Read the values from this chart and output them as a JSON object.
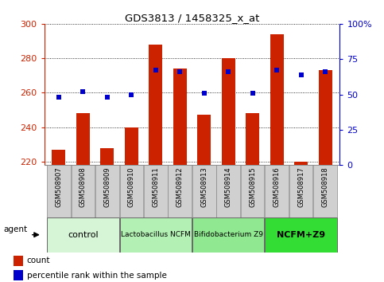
{
  "title": "GDS3813 / 1458325_x_at",
  "samples": [
    "GSM508907",
    "GSM508908",
    "GSM508909",
    "GSM508910",
    "GSM508911",
    "GSM508912",
    "GSM508913",
    "GSM508914",
    "GSM508915",
    "GSM508916",
    "GSM508917",
    "GSM508918"
  ],
  "counts": [
    227,
    248,
    228,
    240,
    288,
    274,
    247,
    280,
    248,
    294,
    220,
    273
  ],
  "percentiles": [
    48,
    52,
    48,
    50,
    67,
    66,
    51,
    66,
    51,
    67,
    64,
    66
  ],
  "ymin": 218,
  "ymax": 300,
  "yticks": [
    220,
    240,
    260,
    280,
    300
  ],
  "y2min": 0,
  "y2max": 100,
  "y2ticks": [
    0,
    25,
    50,
    75,
    100
  ],
  "bar_color": "#cc2200",
  "dot_color": "#0000cc",
  "bar_width": 0.55,
  "group_data": [
    {
      "label": "control",
      "start": 0,
      "end": 2,
      "color": "#d6f5d6"
    },
    {
      "label": "Lactobacillus NCFM",
      "start": 3,
      "end": 5,
      "color": "#b3f0b3"
    },
    {
      "label": "Bifidobacterium Z9",
      "start": 6,
      "end": 8,
      "color": "#90e890"
    },
    {
      "label": "NCFM+Z9",
      "start": 9,
      "end": 11,
      "color": "#33dd33"
    }
  ],
  "legend_count": "count",
  "legend_percentile": "percentile rank within the sample",
  "background_color": "#ffffff",
  "tick_area_color": "#d0d0d0"
}
